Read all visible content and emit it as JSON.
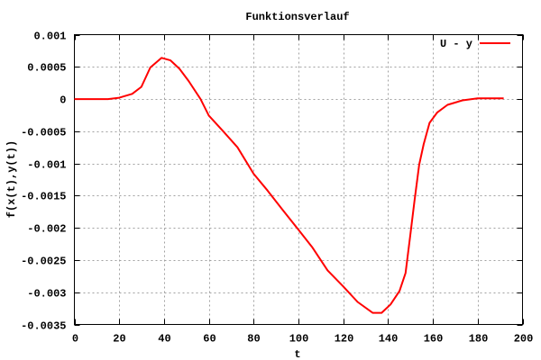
{
  "chart_data": {
    "type": "line",
    "title": "Funktionsverlauf",
    "xlabel": "t",
    "ylabel": "f(x(t),y(t))",
    "xlim": [
      0,
      200
    ],
    "ylim": [
      -0.0035,
      0.001
    ],
    "xticks": [
      0,
      20,
      40,
      60,
      80,
      100,
      120,
      140,
      160,
      180,
      200
    ],
    "xtick_labels": [
      "0",
      "20",
      "40",
      "60",
      "80",
      "100",
      "120",
      "140",
      "160",
      "180",
      "200"
    ],
    "yticks": [
      0.001,
      0.0005,
      0,
      -0.0005,
      -0.001,
      -0.0015,
      -0.002,
      -0.0025,
      -0.003,
      -0.0035
    ],
    "ytick_labels": [
      "0.001",
      "0.0005",
      "0",
      "-0.0005",
      "-0.001",
      "-0.0015",
      "-0.002",
      "-0.0025",
      "-0.003",
      "-0.0035"
    ],
    "grid": true,
    "legend_position": "top-right",
    "series": [
      {
        "name": "U - y",
        "color": "#ff0000",
        "x": [
          0,
          15,
          20,
          25.8,
          29.9,
          33.9,
          38.9,
          42.9,
          46.9,
          51,
          56.3,
          60,
          66.1,
          72.8,
          80,
          86.2,
          92.9,
          100,
          106.3,
          113,
          120,
          126.4,
          133.1,
          137.1,
          141.1,
          145.1,
          147.8,
          149.8,
          151.8,
          153.9,
          155.9,
          158.5,
          161.9,
          166.5,
          173.2,
          180,
          191.6
        ],
        "y": [
          0,
          0,
          2e-05,
          8e-05,
          0.00019,
          0.00049,
          0.00064,
          0.0006,
          0.00047,
          0.00028,
          0,
          -0.000256,
          -0.00049,
          -0.00075,
          -0.00116,
          -0.00142,
          -0.00172,
          -0.00203,
          -0.00231,
          -0.00266,
          -0.00291,
          -0.00315,
          -0.00332,
          -0.00332,
          -0.00319,
          -0.00298,
          -0.0027,
          -0.00214,
          -0.00158,
          -0.00102,
          -0.0007,
          -0.00037,
          -0.00021,
          -9e-05,
          -2e-05,
          1e-05,
          1e-05
        ]
      }
    ]
  }
}
